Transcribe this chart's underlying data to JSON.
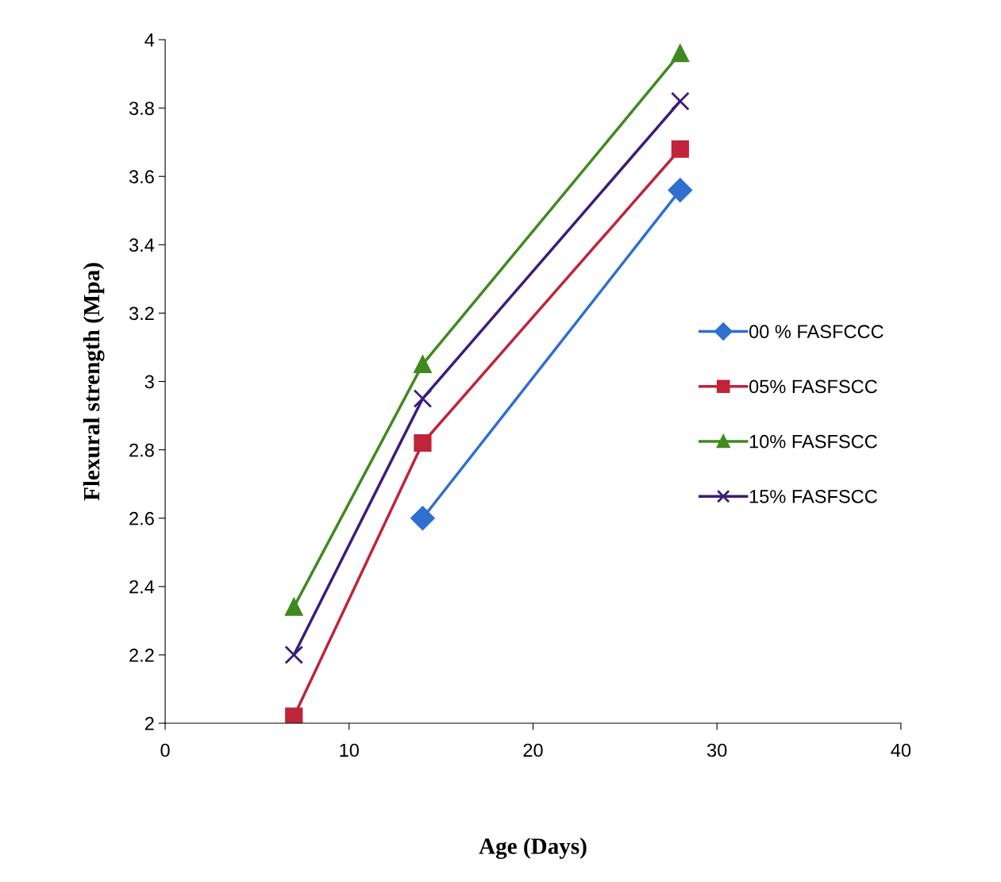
{
  "chart_data": {
    "type": "line",
    "xlabel": "Age (Days)",
    "ylabel": "Flexural strength (Mpa)",
    "x": [
      7,
      14,
      28
    ],
    "series": [
      {
        "name": "00 % FASFCCC",
        "color": "#2e6fd0",
        "marker": "diamond",
        "values": [
          null,
          2.6,
          3.56
        ]
      },
      {
        "name": "05% FASFSCC",
        "color": "#c0243a",
        "marker": "square",
        "values": [
          2.02,
          2.82,
          3.68
        ]
      },
      {
        "name": "10% FASFSCC",
        "color": "#3f8a1e",
        "marker": "triangle",
        "values": [
          2.34,
          3.05,
          3.96
        ]
      },
      {
        "name": "15% FASFSCC",
        "color": "#3b1d7a",
        "marker": "cross",
        "values": [
          2.2,
          2.95,
          3.82
        ]
      }
    ],
    "xlim": [
      0,
      40
    ],
    "xticks": [
      0,
      10,
      20,
      30,
      40
    ],
    "ylim": [
      2,
      4
    ],
    "yticks": [
      2,
      2.2,
      2.4,
      2.6,
      2.8,
      3,
      3.2,
      3.4,
      3.6,
      3.8,
      4
    ],
    "grid": false,
    "legend": "right",
    "line_style": "solid"
  }
}
